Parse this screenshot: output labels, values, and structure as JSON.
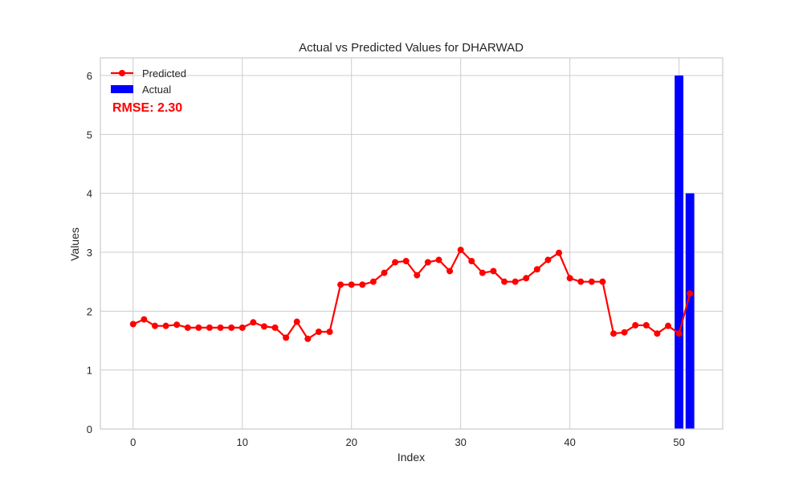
{
  "chart_data": {
    "type": "line",
    "title": "Actual vs Predicted Values for DHARWAD",
    "xlabel": "Index",
    "ylabel": "Values",
    "xlim": [
      -3,
      54
    ],
    "ylim": [
      0,
      6.3
    ],
    "xticks": [
      0,
      10,
      20,
      30,
      40,
      50
    ],
    "yticks": [
      0,
      1,
      2,
      3,
      4,
      5,
      6
    ],
    "grid": true,
    "legend_position": "top-left",
    "annotation": "RMSE: 2.30",
    "series": [
      {
        "name": "Predicted",
        "type": "line",
        "color": "#ff0000",
        "marker": "circle",
        "x": [
          0,
          1,
          2,
          3,
          4,
          5,
          6,
          7,
          8,
          9,
          10,
          11,
          12,
          13,
          14,
          15,
          16,
          17,
          18,
          19,
          20,
          21,
          22,
          23,
          24,
          25,
          26,
          27,
          28,
          29,
          30,
          31,
          32,
          33,
          34,
          35,
          36,
          37,
          38,
          39,
          40,
          41,
          42,
          43,
          44,
          45,
          46,
          47,
          48,
          49,
          50,
          51
        ],
        "values": [
          1.78,
          1.86,
          1.75,
          1.75,
          1.77,
          1.72,
          1.72,
          1.72,
          1.72,
          1.72,
          1.72,
          1.81,
          1.74,
          1.72,
          1.55,
          1.82,
          1.53,
          1.65,
          1.65,
          2.45,
          2.45,
          2.45,
          2.5,
          2.65,
          2.83,
          2.85,
          2.61,
          2.83,
          2.87,
          2.68,
          3.04,
          2.85,
          2.65,
          2.68,
          2.5,
          2.5,
          2.56,
          2.71,
          2.87,
          2.99,
          2.56,
          2.5,
          2.5,
          2.5,
          1.62,
          1.64,
          1.76,
          1.76,
          1.62,
          1.75,
          1.62,
          2.3
        ]
      },
      {
        "name": "Actual",
        "type": "bar",
        "color": "#0000ff",
        "x": [
          50,
          51
        ],
        "values": [
          6,
          4
        ]
      }
    ]
  }
}
